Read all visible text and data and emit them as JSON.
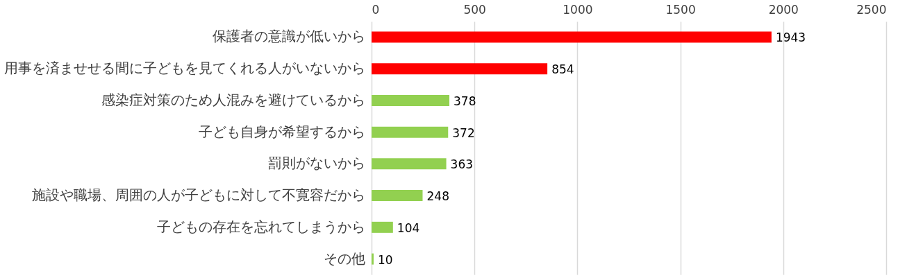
{
  "chart_data": {
    "type": "bar",
    "orientation": "horizontal",
    "categories": [
      "保護者の意識が低いから",
      "用事を済ませせる間に子どもを見てくれる人がいないから",
      "感染症対策のため人混みを避けているから",
      "子ども自身が希望するから",
      "罰則がないから",
      "施設や職場、周囲の人が子どもに対して不寛容だから",
      "子どもの存在を忘れてしまうから",
      "その他"
    ],
    "values": [
      1943,
      854,
      378,
      372,
      363,
      248,
      104,
      10
    ],
    "colors": [
      "#ff0000",
      "#ff0000",
      "#92d050",
      "#92d050",
      "#92d050",
      "#92d050",
      "#92d050",
      "#92d050"
    ],
    "xlim": [
      0,
      2500
    ],
    "xticks": [
      0,
      500,
      1000,
      1500,
      2000,
      2500
    ],
    "grid": "x",
    "data_labels": true
  }
}
